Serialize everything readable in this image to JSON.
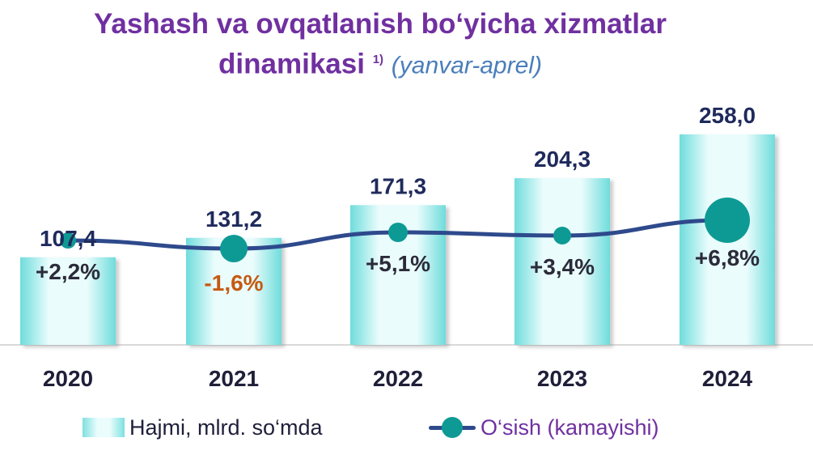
{
  "title": {
    "main_line1": "Yashash va ovqatlanish bo‘yicha xizmatlar",
    "main_line2": "dinamikasi",
    "footnote": "1)",
    "period": "(yanvar-aprel)"
  },
  "colors": {
    "title": "#7030A0",
    "bar_edge": "#4fd3d3",
    "bar_center": "#eafcfc",
    "line": "#2E4A8C",
    "marker": "#0E9A94",
    "value_label": "#1F2A5C",
    "negative": "#C55A11"
  },
  "legend": {
    "bars": "Hajmi, mlrd. so‘mda",
    "line": "O‘sish (kamayishi)"
  },
  "chart_data": {
    "type": "bar",
    "categories": [
      "2020",
      "2021",
      "2022",
      "2023",
      "2024"
    ],
    "series": [
      {
        "name": "Hajmi, mlrd. so‘mda",
        "type": "bar",
        "values": [
          107.4,
          131.2,
          171.3,
          204.3,
          258.0
        ],
        "labels": [
          "107,4",
          "131,2",
          "171,3",
          "204,3",
          "258,0"
        ]
      },
      {
        "name": "O‘sish (kamayishi)",
        "type": "line",
        "values": [
          2.2,
          -1.6,
          5.1,
          3.4,
          6.8
        ],
        "labels": [
          "+2,2%",
          "-1,6%",
          "+5,1%",
          "+3,4%",
          "+6,8%"
        ]
      }
    ],
    "ylim": [
      0,
      275
    ],
    "grid": false,
    "legend_position": "bottom"
  }
}
